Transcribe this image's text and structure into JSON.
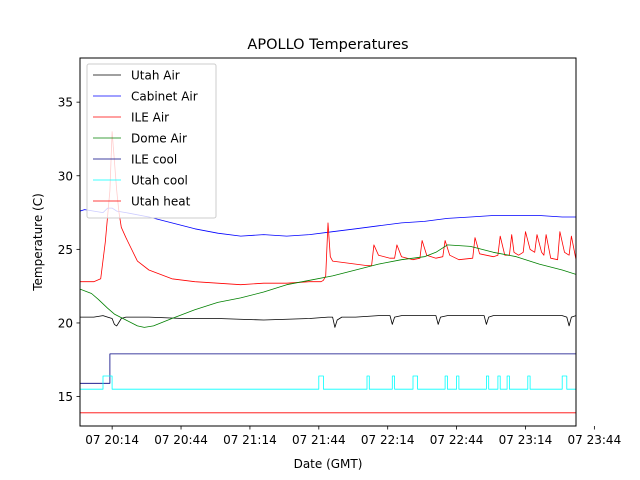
{
  "chart_data": {
    "type": "line",
    "title": "APOLLO Temperatures",
    "xlabel": "Date (GMT)",
    "ylabel": "Temperature (C)",
    "xlim": [
      0,
      216
    ],
    "ylim": [
      13,
      38
    ],
    "x_unit": "minutes after 07 20:00 GMT",
    "x_ticks": [
      {
        "value": 14,
        "label": "07 20:14"
      },
      {
        "value": 44,
        "label": "07 20:44"
      },
      {
        "value": 74,
        "label": "07 21:14"
      },
      {
        "value": 104,
        "label": "07 21:44"
      },
      {
        "value": 134,
        "label": "07 22:14"
      },
      {
        "value": 164,
        "label": "07 22:44"
      },
      {
        "value": 194,
        "label": "07 23:14"
      },
      {
        "value": 224,
        "label": "07 23:44"
      }
    ],
    "y_ticks": [
      15,
      20,
      25,
      30,
      35
    ],
    "legend_position": "upper-left",
    "series": [
      {
        "name": "Utah Air",
        "color": "#000000",
        "x": [
          0,
          6,
          10,
          12,
          14,
          15,
          16,
          18,
          20,
          30,
          45,
          60,
          80,
          100,
          108,
          110,
          111,
          112,
          114,
          120,
          130,
          135,
          136,
          137,
          140,
          150,
          155,
          156,
          157,
          160,
          170,
          176,
          177,
          178,
          180,
          190,
          200,
          210,
          212,
          213,
          214,
          216
        ],
        "y": [
          20.4,
          20.4,
          20.5,
          20.4,
          20.3,
          19.9,
          19.8,
          20.3,
          20.4,
          20.4,
          20.3,
          20.3,
          20.2,
          20.3,
          20.4,
          20.4,
          19.7,
          20.2,
          20.4,
          20.4,
          20.5,
          20.5,
          19.9,
          20.4,
          20.5,
          20.5,
          20.5,
          19.9,
          20.4,
          20.5,
          20.5,
          20.5,
          19.9,
          20.4,
          20.5,
          20.5,
          20.5,
          20.5,
          20.4,
          19.8,
          20.4,
          20.5
        ]
      },
      {
        "name": "Cabinet Air",
        "color": "#0000ff",
        "x": [
          0,
          2,
          6,
          10,
          12,
          14,
          16,
          20,
          30,
          40,
          50,
          60,
          70,
          80,
          90,
          100,
          110,
          120,
          130,
          140,
          150,
          160,
          170,
          180,
          190,
          200,
          210,
          216
        ],
        "y": [
          27.6,
          27.7,
          27.6,
          27.5,
          27.8,
          27.8,
          27.6,
          27.5,
          27.2,
          26.8,
          26.4,
          26.1,
          25.9,
          26.0,
          25.9,
          26.0,
          26.2,
          26.4,
          26.6,
          26.8,
          26.9,
          27.1,
          27.2,
          27.3,
          27.3,
          27.3,
          27.2,
          27.2
        ]
      },
      {
        "name": "ILE Air",
        "color": "#ff0000",
        "x": [
          0,
          6,
          9,
          11,
          13,
          14,
          15,
          16,
          17,
          18,
          20,
          25,
          30,
          40,
          50,
          60,
          70,
          80,
          90,
          100,
          105,
          106,
          107,
          108,
          109,
          110,
          115,
          120,
          125,
          127,
          128,
          130,
          135,
          137,
          138,
          140,
          145,
          148,
          149,
          151,
          155,
          158,
          159,
          161,
          165,
          171,
          172,
          174,
          180,
          182,
          183,
          185,
          187,
          188,
          189,
          191,
          193,
          194,
          196,
          198,
          199,
          201,
          202,
          203,
          205,
          208,
          209,
          211,
          213,
          214,
          216
        ],
        "y": [
          22.8,
          22.8,
          23.0,
          25.5,
          29.0,
          33.0,
          31.0,
          29.0,
          27.5,
          26.5,
          25.8,
          24.2,
          23.6,
          23.0,
          22.8,
          22.7,
          22.6,
          22.7,
          22.7,
          22.8,
          22.8,
          22.9,
          23.2,
          26.8,
          24.5,
          24.2,
          24.1,
          24.0,
          23.9,
          23.9,
          25.3,
          24.6,
          24.4,
          24.4,
          25.3,
          24.5,
          24.3,
          24.4,
          25.6,
          24.6,
          24.4,
          24.5,
          25.6,
          24.6,
          24.3,
          24.4,
          25.8,
          24.7,
          24.5,
          24.6,
          25.9,
          24.6,
          24.6,
          26.0,
          24.8,
          24.6,
          24.8,
          26.2,
          25.0,
          24.8,
          26.0,
          24.8,
          24.6,
          26.0,
          24.4,
          24.3,
          26.2,
          24.8,
          24.6,
          25.9,
          24.3
        ]
      },
      {
        "name": "Dome Air",
        "color": "#008000",
        "x": [
          0,
          5,
          8,
          12,
          15,
          20,
          25,
          28,
          32,
          40,
          50,
          60,
          70,
          80,
          90,
          100,
          110,
          120,
          130,
          140,
          150,
          155,
          160,
          170,
          180,
          190,
          200,
          210,
          216
        ],
        "y": [
          22.3,
          22.0,
          21.6,
          21.0,
          20.6,
          20.2,
          19.8,
          19.7,
          19.8,
          20.3,
          20.9,
          21.4,
          21.7,
          22.1,
          22.6,
          22.9,
          23.2,
          23.6,
          24.0,
          24.3,
          24.5,
          24.8,
          25.3,
          25.2,
          24.8,
          24.5,
          24.0,
          23.6,
          23.3
        ]
      },
      {
        "name": "ILE cool",
        "color": "#000080",
        "x": [
          0,
          13,
          13,
          216
        ],
        "y": [
          15.9,
          15.9,
          17.9,
          17.9
        ]
      },
      {
        "name": "Utah cool",
        "color": "#00ffff",
        "x": [
          0,
          10,
          10,
          14,
          14,
          104,
          104,
          106,
          106,
          125,
          125,
          126,
          126,
          136,
          136,
          137,
          137,
          145,
          145,
          147,
          147,
          159,
          159,
          160,
          160,
          164,
          164,
          165,
          165,
          177,
          177,
          178,
          178,
          182,
          182,
          183,
          183,
          186,
          186,
          187,
          187,
          195,
          195,
          196,
          196,
          210,
          210,
          212,
          212,
          216
        ],
        "y": [
          15.5,
          15.5,
          16.4,
          16.4,
          15.5,
          15.5,
          16.4,
          16.4,
          15.5,
          15.5,
          16.4,
          16.4,
          15.5,
          15.5,
          16.4,
          16.4,
          15.5,
          15.5,
          16.4,
          16.4,
          15.5,
          15.5,
          16.4,
          16.4,
          15.5,
          15.5,
          16.4,
          16.4,
          15.5,
          15.5,
          16.4,
          16.4,
          15.5,
          15.5,
          16.4,
          16.4,
          15.5,
          15.5,
          16.4,
          16.4,
          15.5,
          15.5,
          16.4,
          16.4,
          15.5,
          15.5,
          16.4,
          16.4,
          15.5,
          15.5
        ]
      },
      {
        "name": "Utah heat",
        "color": "#ff0000",
        "x": [
          0,
          216
        ],
        "y": [
          13.9,
          13.9
        ]
      }
    ]
  }
}
